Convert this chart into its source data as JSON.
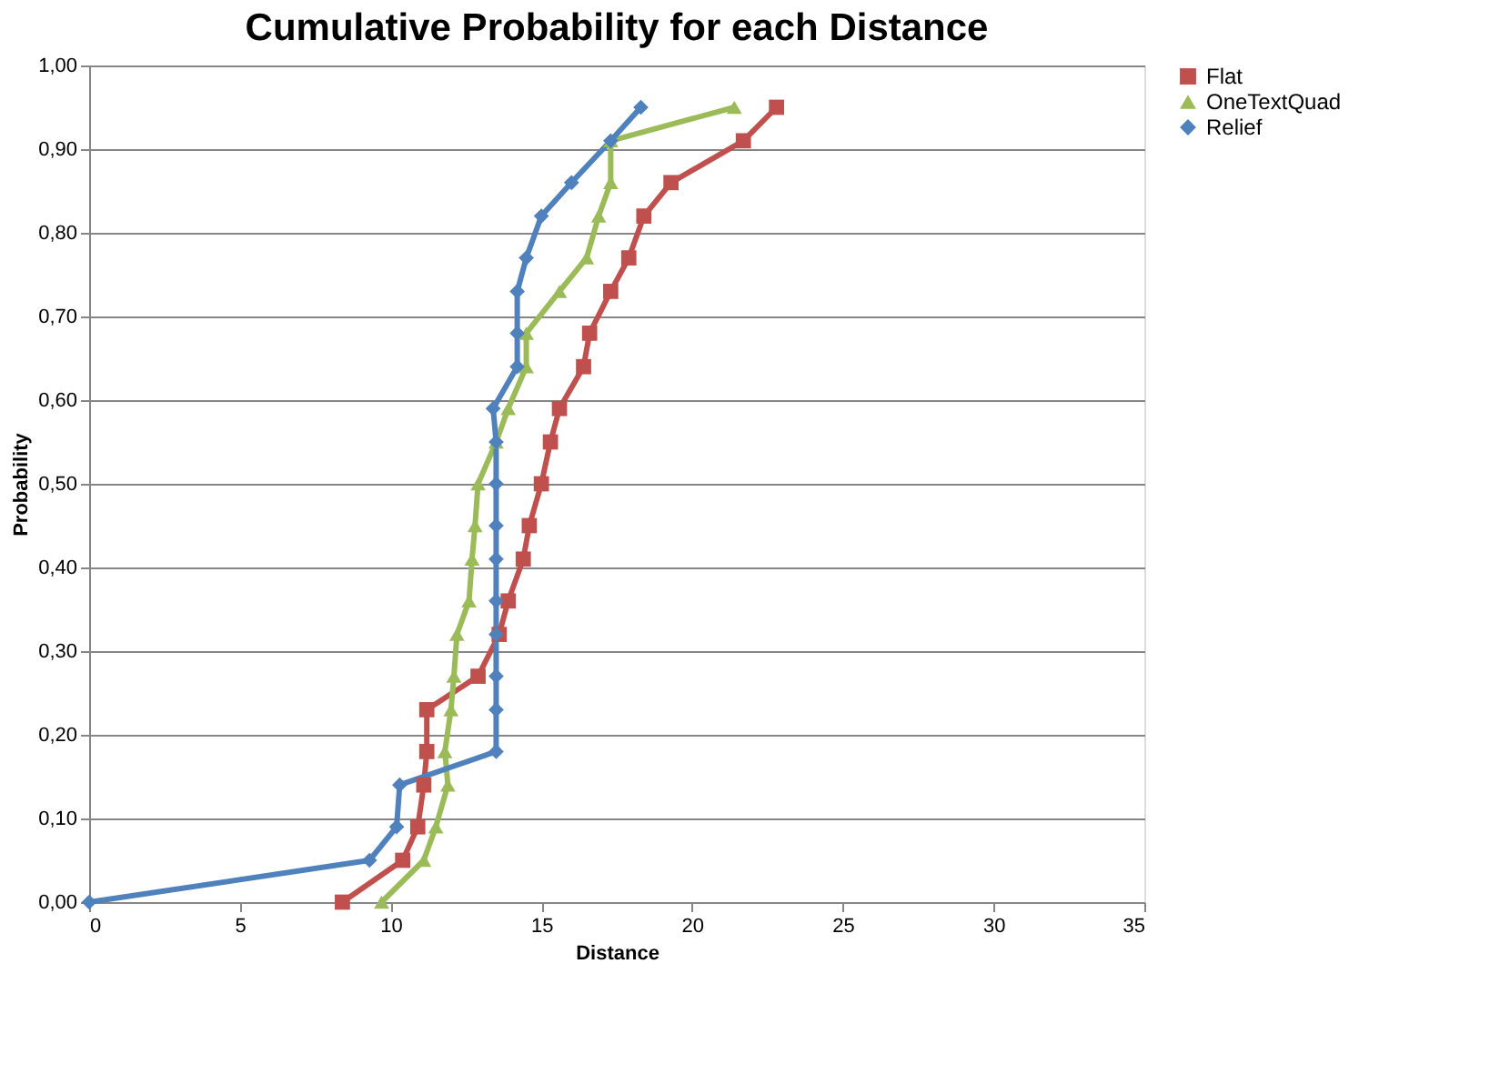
{
  "chart_data": {
    "type": "line",
    "title": "Cumulative Probability for each Distance",
    "xlabel": "Distance",
    "ylabel": "Probability",
    "xlim": [
      0,
      35
    ],
    "xticks": [
      0,
      5,
      10,
      15,
      20,
      25,
      30,
      35
    ],
    "ylim": [
      0,
      1
    ],
    "yticks": [
      {
        "value": 0,
        "label": "0,00"
      },
      {
        "value": 0.1,
        "label": "0,10"
      },
      {
        "value": 0.2,
        "label": "0,20"
      },
      {
        "value": 0.3,
        "label": "0,30"
      },
      {
        "value": 0.4,
        "label": "0,40"
      },
      {
        "value": 0.5,
        "label": "0,50"
      },
      {
        "value": 0.6,
        "label": "0,60"
      },
      {
        "value": 0.7,
        "label": "0,70"
      },
      {
        "value": 0.8,
        "label": "0,80"
      },
      {
        "value": 0.9,
        "label": "0,90"
      },
      {
        "value": 1,
        "label": "1,00"
      }
    ],
    "grid": "y",
    "legend": "right",
    "line_style": "solid",
    "series": [
      {
        "name": "Flat",
        "color": "#c0504d",
        "marker": "square",
        "x": [
          8.4,
          10.4,
          10.9,
          11.1,
          11.2,
          11.2,
          12.9,
          13.6,
          13.9,
          14.4,
          14.6,
          15.0,
          15.3,
          15.6,
          16.4,
          16.6,
          17.3,
          17.9,
          18.4,
          19.3,
          21.7,
          22.8
        ],
        "values": [
          0,
          0.05,
          0.09,
          0.14,
          0.18,
          0.23,
          0.27,
          0.32,
          0.36,
          0.41,
          0.45,
          0.5,
          0.55,
          0.59,
          0.64,
          0.68,
          0.73,
          0.77,
          0.82,
          0.86,
          0.91,
          0.95
        ]
      },
      {
        "name": "OneTextQuad",
        "color": "#9bbb59",
        "marker": "triangle",
        "x": [
          9.7,
          11.1,
          11.5,
          11.9,
          11.8,
          12.0,
          12.1,
          12.2,
          12.6,
          12.7,
          12.8,
          12.9,
          13.5,
          13.9,
          14.5,
          14.5,
          15.6,
          16.5,
          16.9,
          17.3,
          17.3,
          21.4
        ],
        "values": [
          0,
          0.05,
          0.09,
          0.14,
          0.18,
          0.23,
          0.27,
          0.32,
          0.36,
          0.41,
          0.45,
          0.5,
          0.55,
          0.59,
          0.64,
          0.68,
          0.73,
          0.77,
          0.82,
          0.86,
          0.91,
          0.95
        ]
      },
      {
        "name": "Relief",
        "color": "#4f81bd",
        "marker": "diamond",
        "x": [
          0,
          9.3,
          10.2,
          10.3,
          13.5,
          13.5,
          13.5,
          13.5,
          13.5,
          13.5,
          13.5,
          13.5,
          13.5,
          13.4,
          14.2,
          14.2,
          14.2,
          14.5,
          15.0,
          16.0,
          17.3,
          18.3
        ],
        "values": [
          0,
          0.05,
          0.09,
          0.14,
          0.18,
          0.23,
          0.27,
          0.32,
          0.36,
          0.41,
          0.45,
          0.5,
          0.55,
          0.59,
          0.64,
          0.68,
          0.73,
          0.77,
          0.82,
          0.86,
          0.91,
          0.95
        ]
      }
    ]
  }
}
